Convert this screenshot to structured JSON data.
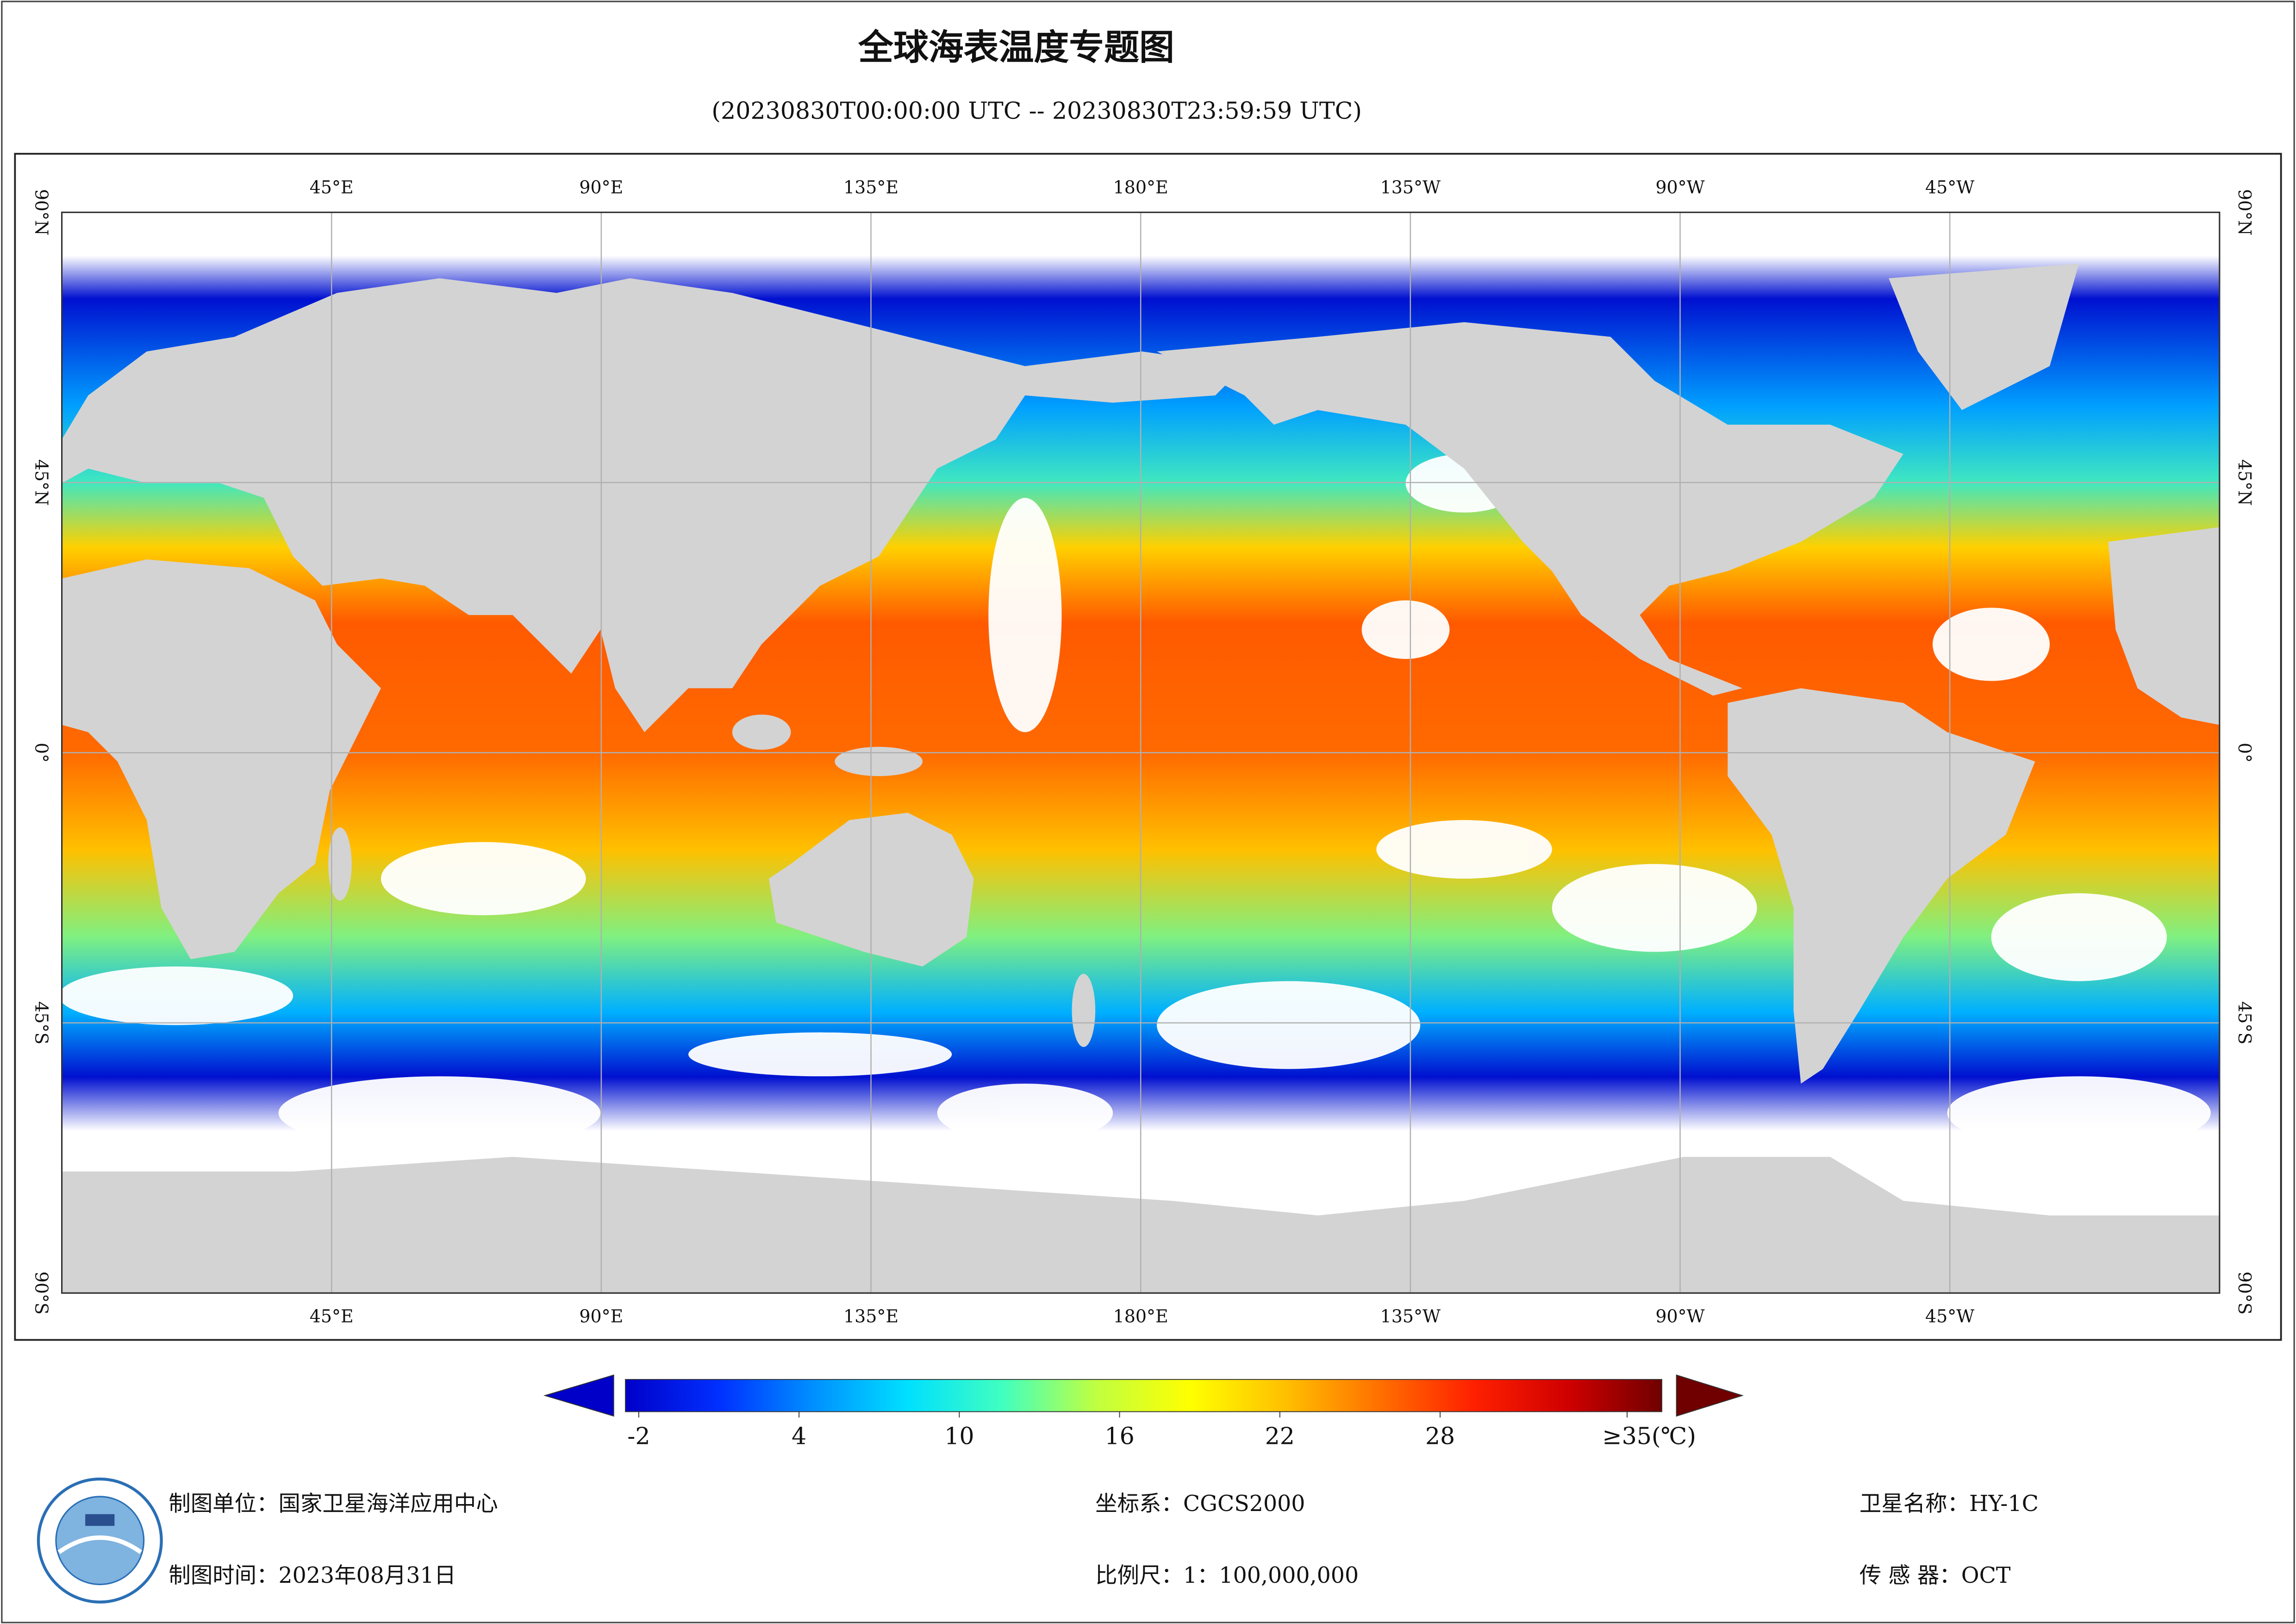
{
  "title": "全球海表温度专题图",
  "subtitle": "(20230830T00:00:00 UTC -- 20230830T23:59:59 UTC)",
  "map": {
    "lon_labels": [
      "45°E",
      "90°E",
      "135°E",
      "180°E",
      "135°W",
      "90°W",
      "45°W"
    ],
    "lat_labels": [
      "90°N",
      "45°N",
      "0°",
      "45°S",
      "90°S"
    ]
  },
  "colorbar": {
    "lim": [
      -2.5,
      36.3
    ],
    "ticks": [
      -2,
      4,
      10,
      16,
      22,
      28,
      {
        "value": 35,
        "label": "≥35(℃)"
      }
    ],
    "colors": [
      "#0000c8",
      "#0030ff",
      "#0090ff",
      "#00e0ff",
      "#40ffc0",
      "#c0ff40",
      "#ffff00",
      "#ffc000",
      "#ff7000",
      "#ff2000",
      "#d00000",
      "#700000"
    ]
  },
  "footer": {
    "agency": "制图单位：国家卫星海洋应用中心",
    "date": "制图时间：2023年08月31日",
    "crs": "坐标系：CGCS2000",
    "scale": "比例尺：1：100,000,000",
    "satellite": "卫星名称：HY-1C",
    "sensor": "传 感 器：OCT"
  }
}
